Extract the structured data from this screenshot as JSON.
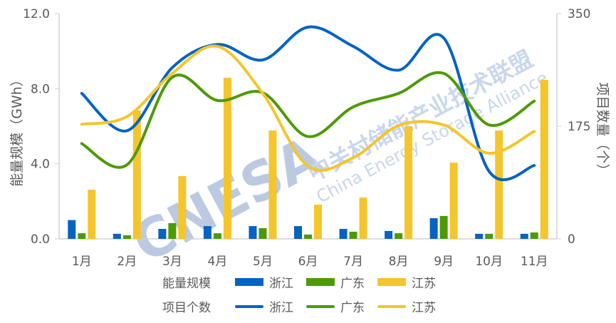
{
  "chart_data": {
    "type": "bar+line",
    "categories": [
      "1月",
      "2月",
      "3月",
      "4月",
      "5月",
      "6月",
      "7月",
      "8月",
      "9月",
      "10月",
      "11月"
    ],
    "left_axis": {
      "label": "能量规模（GWh）",
      "ylim": [
        0,
        12
      ],
      "ticks": [
        "0.0",
        "4.0",
        "8.0",
        "12.0"
      ],
      "tick_values": [
        0,
        4,
        8,
        12
      ]
    },
    "right_axis": {
      "label": "项目数量（个）",
      "ylim": [
        0,
        350
      ],
      "ticks": [
        "0",
        "175",
        "350"
      ],
      "tick_values": [
        0,
        175,
        350
      ]
    },
    "bar_series": [
      {
        "name": "浙江",
        "color": "#0563C1",
        "values": [
          1.0,
          0.27,
          0.53,
          0.68,
          0.68,
          0.68,
          0.53,
          0.42,
          1.1,
          0.27,
          0.27
        ]
      },
      {
        "name": "广东",
        "color": "#4E9A06",
        "values": [
          0.3,
          0.19,
          0.84,
          0.3,
          0.57,
          0.23,
          0.38,
          0.3,
          1.22,
          0.27,
          0.34
        ]
      },
      {
        "name": "江苏",
        "color": "#F4C62C",
        "values": [
          2.62,
          6.84,
          3.34,
          8.58,
          5.77,
          1.82,
          2.2,
          6.0,
          4.06,
          5.77,
          8.47
        ]
      }
    ],
    "line_series": [
      {
        "name": "浙江",
        "color": "#0563C1",
        "values": [
          226,
          168,
          266,
          302,
          278,
          329,
          299,
          262,
          312,
          105,
          114
        ]
      },
      {
        "name": "广东",
        "color": "#4E9A06",
        "values": [
          148,
          115,
          251,
          215,
          227,
          159,
          205,
          226,
          257,
          177,
          214
        ]
      },
      {
        "name": "江苏",
        "color": "#F4C62C",
        "values": [
          178,
          190,
          257,
          299,
          226,
          113,
          126,
          176,
          177,
          133,
          167
        ]
      }
    ],
    "legend": {
      "placement": "bottom",
      "bar_group_label": "能量规模",
      "line_group_label": "项目个数"
    },
    "grid": false
  },
  "watermark": {
    "logo": "CNESA",
    "cn": "中关村储能产业技术联盟",
    "en": "China Energy Storage Alliance"
  }
}
